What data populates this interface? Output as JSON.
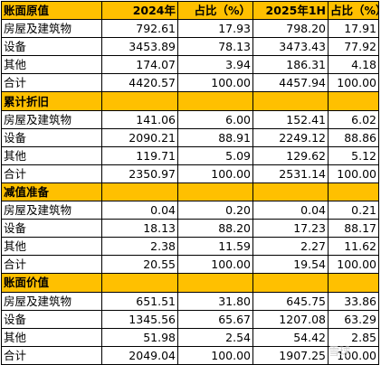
{
  "sections": [
    {
      "header": [
        "账面原值",
        "2024年",
        "占比（%）",
        "2025年1H",
        "占比（%）"
      ],
      "rows": [
        [
          "房屋及建筑物",
          "792.61",
          "17.93",
          "798.20",
          "17.91"
        ],
        [
          "设备",
          "3453.89",
          "78.13",
          "3473.43",
          "77.92"
        ],
        [
          "其他",
          "174.07",
          "3.94",
          "186.31",
          "4.18"
        ],
        [
          "合计",
          "4420.57",
          "100.00",
          "4457.94",
          "100.00"
        ]
      ]
    },
    {
      "header": [
        "累计折旧",
        "",
        "",
        "",
        ""
      ],
      "rows": [
        [
          "房屋及建筑物",
          "141.06",
          "6.00",
          "152.41",
          "6.02"
        ],
        [
          "设备",
          "2090.21",
          "88.91",
          "2249.12",
          "88.86"
        ],
        [
          "其他",
          "119.71",
          "5.09",
          "129.62",
          "5.12"
        ],
        [
          "合计",
          "2350.97",
          "100.00",
          "2531.14",
          "100.00"
        ]
      ]
    },
    {
      "header": [
        "减值准备",
        "",
        "",
        "",
        ""
      ],
      "rows": [
        [
          "房屋及建筑物",
          "0.04",
          "0.20",
          "0.04",
          "0.21"
        ],
        [
          "设备",
          "18.13",
          "88.20",
          "17.23",
          "88.17"
        ],
        [
          "其他",
          "2.38",
          "11.59",
          "2.27",
          "11.62"
        ],
        [
          "合计",
          "20.55",
          "100.00",
          "19.54",
          "100.00"
        ]
      ]
    },
    {
      "header": [
        "账面价值",
        "",
        "",
        "",
        ""
      ],
      "rows": [
        [
          "房屋及建筑物",
          "651.51",
          "31.80",
          "645.75",
          "33.86"
        ],
        [
          "设备",
          "1345.56",
          "65.67",
          "1207.08",
          "63.29"
        ],
        [
          "其他",
          "51.98",
          "2.54",
          "54.42",
          "2.85"
        ],
        [
          "合计",
          "2049.04",
          "100.00",
          "1907.25",
          "100.00"
        ]
      ]
    }
  ],
  "watermark": "雪球"
}
